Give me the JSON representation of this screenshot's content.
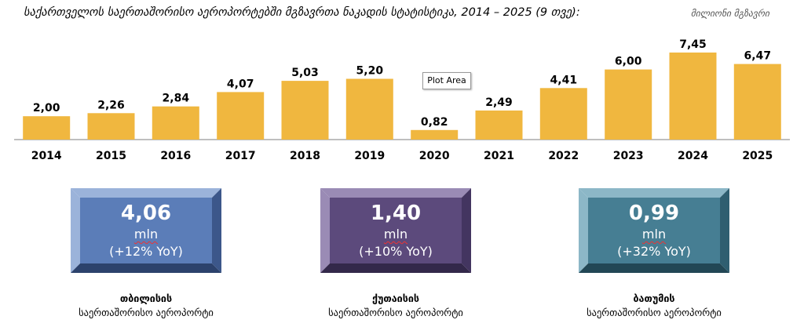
{
  "header": {
    "title": "საქართველოს საერთაშორისო აეროპორტებში მგზავრთა ნაკადის სტატისტიკა, 2014 – 2025 (9 თვე):",
    "unit": "მილიონი მგზავრი"
  },
  "tooltip": {
    "label": "Plot Area"
  },
  "chart_data": {
    "type": "bar",
    "categories": [
      "2014",
      "2015",
      "2016",
      "2017",
      "2018",
      "2019",
      "2020",
      "2021",
      "2022",
      "2023",
      "2024",
      "2025"
    ],
    "values": [
      2.0,
      2.26,
      2.84,
      4.07,
      5.03,
      5.2,
      0.82,
      2.49,
      4.41,
      6.0,
      7.45,
      6.47
    ],
    "value_labels": [
      "2,00",
      "2,26",
      "2,84",
      "4,07",
      "5,03",
      "5,20",
      "0,82",
      "2,49",
      "4,41",
      "6,00",
      "7,45",
      "6,47"
    ],
    "title": "საქართველოს საერთაშორისო აეროპორტებში მგზავრთა ნაკადის სტატისტიკა, 2014 – 2025 (9 თვე):",
    "ylabel": "მილიონი მგზავრი",
    "ylim": [
      0,
      7.45
    ],
    "grid": false,
    "bar_color": "#F0B73F"
  },
  "cards": [
    {
      "value": "4,06",
      "unit": "mln",
      "yoy": "(+12% YoY)",
      "name": "თბილისის",
      "subtitle": "საერთაშორისო აეროპორტი",
      "color": "#5B7DB8",
      "light": "#9BB3DA",
      "dark": "#3C578A",
      "darker": "#2C426C"
    },
    {
      "value": "1,40",
      "unit": "mln",
      "yoy": "(+10% YoY)",
      "name": "ქუთაისის",
      "subtitle": "საერთაშორისო აეროპორტი",
      "color": "#5C4A7C",
      "light": "#9A8BB5",
      "dark": "#433560",
      "darker": "#33284A"
    },
    {
      "value": "0,99",
      "unit": "mln",
      "yoy": "(+32% YoY)",
      "name": "ბათუმის",
      "subtitle": "საერთაშორისო აეროპორტი",
      "color": "#467E93",
      "light": "#8CB7C7",
      "dark": "#2F5E70",
      "darker": "#224755"
    }
  ]
}
